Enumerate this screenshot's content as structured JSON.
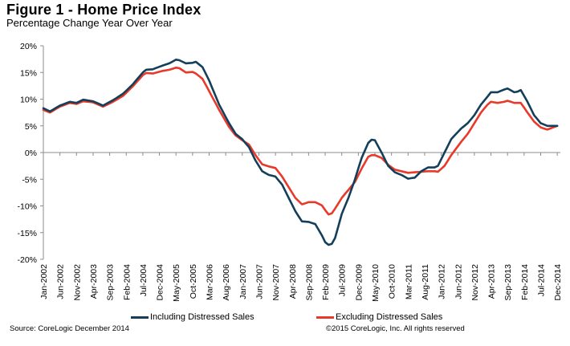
{
  "header": {
    "title": "Figure 1 - Home Price Index",
    "subtitle": "Percentage Change Year Over Year"
  },
  "legend": {
    "items": [
      {
        "label": "Including Distressed Sales",
        "color": "#143f5a"
      },
      {
        "label": "Excluding Distressed Sales",
        "color": "#e8392a"
      }
    ]
  },
  "footer": {
    "source": "Source: CoreLogic December 2014",
    "copyright": "©2015 CoreLogic, Inc. All rights reserved"
  },
  "chart_data": {
    "type": "line",
    "title": "Figure 1 - Home Price Index",
    "subtitle": "Percentage Change Year Over Year",
    "xlabel": "",
    "ylabel": "",
    "ylim": [
      -20,
      20
    ],
    "yticks": [
      20,
      15,
      10,
      5,
      0,
      -5,
      -10,
      -15,
      -20
    ],
    "ytick_labels": [
      "20%",
      "15%",
      "10%",
      "5%",
      "0%",
      "-5%",
      "-10%",
      "-15%",
      "-20%"
    ],
    "x_start": "Jan-2002",
    "x_end": "Dec-2014",
    "x_frequency": "monthly",
    "n_months": 156,
    "xtick_step_months": 5,
    "xtick_labels": [
      "Jan-2002",
      "Jun-2002",
      "Nov-2002",
      "Apr-2003",
      "Sep-2003",
      "Feb-2004",
      "Jul-2004",
      "Dec-2004",
      "May-2005",
      "Oct-2005",
      "Mar-2006",
      "Aug-2006",
      "Jan-2007",
      "Jun-2007",
      "Nov-2007",
      "Apr-2008",
      "Sep-2008",
      "Feb-2009",
      "Jul-2009",
      "Dec-2009",
      "May-2010",
      "Oct-2010",
      "Mar-2011",
      "Aug-2011",
      "Jan-2012",
      "Jun-2012",
      "Nov-2012",
      "Apr-2013",
      "Sep-2013",
      "Feb-2014",
      "Jul-2014",
      "Dec-2014"
    ],
    "grid": false,
    "legend_position": "bottom",
    "series": [
      {
        "name": "Including Distressed Sales",
        "color": "#143f5a",
        "keypoints": [
          [
            0,
            8.3
          ],
          [
            2,
            7.7
          ],
          [
            5,
            8.8
          ],
          [
            8,
            9.5
          ],
          [
            10,
            9.3
          ],
          [
            12,
            9.9
          ],
          [
            15,
            9.6
          ],
          [
            18,
            8.8
          ],
          [
            21,
            9.8
          ],
          [
            24,
            11.0
          ],
          [
            27,
            12.8
          ],
          [
            30,
            15.0
          ],
          [
            31,
            15.5
          ],
          [
            33,
            15.6
          ],
          [
            36,
            16.3
          ],
          [
            38,
            16.7
          ],
          [
            40,
            17.4
          ],
          [
            41,
            17.3
          ],
          [
            43,
            16.7
          ],
          [
            45,
            16.8
          ],
          [
            46,
            17.0
          ],
          [
            48,
            16.0
          ],
          [
            50,
            13.5
          ],
          [
            53,
            9.0
          ],
          [
            56,
            5.5
          ],
          [
            58,
            3.5
          ],
          [
            60,
            2.5
          ],
          [
            62,
            1.0
          ],
          [
            64,
            -1.5
          ],
          [
            66,
            -3.5
          ],
          [
            68,
            -4.2
          ],
          [
            70,
            -4.5
          ],
          [
            72,
            -6.0
          ],
          [
            74,
            -8.5
          ],
          [
            76,
            -11.0
          ],
          [
            78,
            -12.9
          ],
          [
            80,
            -13.0
          ],
          [
            82,
            -13.4
          ],
          [
            84,
            -15.5
          ],
          [
            85,
            -16.8
          ],
          [
            86,
            -17.3
          ],
          [
            87,
            -17.1
          ],
          [
            88,
            -16.0
          ],
          [
            90,
            -11.5
          ],
          [
            92,
            -8.5
          ],
          [
            94,
            -5.0
          ],
          [
            96,
            -1.0
          ],
          [
            98,
            1.8
          ],
          [
            99,
            2.4
          ],
          [
            100,
            2.3
          ],
          [
            102,
            0.0
          ],
          [
            104,
            -2.5
          ],
          [
            106,
            -3.7
          ],
          [
            108,
            -4.2
          ],
          [
            110,
            -4.9
          ],
          [
            112,
            -4.7
          ],
          [
            114,
            -3.5
          ],
          [
            116,
            -2.8
          ],
          [
            118,
            -2.8
          ],
          [
            119,
            -2.5
          ],
          [
            121,
            0.0
          ],
          [
            123,
            2.5
          ],
          [
            126,
            4.5
          ],
          [
            128,
            5.5
          ],
          [
            130,
            7.0
          ],
          [
            132,
            9.0
          ],
          [
            134,
            10.5
          ],
          [
            135,
            11.3
          ],
          [
            137,
            11.3
          ],
          [
            139,
            11.8
          ],
          [
            140,
            12.0
          ],
          [
            142,
            11.3
          ],
          [
            143,
            11.4
          ],
          [
            144,
            11.7
          ],
          [
            146,
            9.5
          ],
          [
            148,
            7.0
          ],
          [
            150,
            5.5
          ],
          [
            152,
            5.0
          ],
          [
            155,
            5.0
          ]
        ]
      },
      {
        "name": "Excluding Distressed Sales",
        "color": "#e8392a",
        "keypoints": [
          [
            0,
            8.0
          ],
          [
            2,
            7.5
          ],
          [
            5,
            8.6
          ],
          [
            8,
            9.3
          ],
          [
            10,
            9.1
          ],
          [
            12,
            9.6
          ],
          [
            15,
            9.4
          ],
          [
            18,
            8.6
          ],
          [
            21,
            9.5
          ],
          [
            24,
            10.6
          ],
          [
            27,
            12.4
          ],
          [
            30,
            14.5
          ],
          [
            31,
            14.9
          ],
          [
            33,
            14.8
          ],
          [
            36,
            15.3
          ],
          [
            38,
            15.5
          ],
          [
            40,
            15.9
          ],
          [
            41,
            15.8
          ],
          [
            43,
            15.0
          ],
          [
            45,
            15.1
          ],
          [
            46,
            14.8
          ],
          [
            48,
            13.8
          ],
          [
            50,
            11.5
          ],
          [
            53,
            8.0
          ],
          [
            56,
            4.8
          ],
          [
            58,
            3.2
          ],
          [
            60,
            2.3
          ],
          [
            62,
            1.5
          ],
          [
            64,
            -0.5
          ],
          [
            66,
            -2.2
          ],
          [
            68,
            -2.6
          ],
          [
            70,
            -2.9
          ],
          [
            72,
            -4.5
          ],
          [
            74,
            -6.5
          ],
          [
            76,
            -8.5
          ],
          [
            78,
            -9.7
          ],
          [
            80,
            -9.3
          ],
          [
            82,
            -9.3
          ],
          [
            84,
            -9.9
          ],
          [
            85,
            -10.8
          ],
          [
            86,
            -11.6
          ],
          [
            87,
            -11.4
          ],
          [
            88,
            -10.5
          ],
          [
            90,
            -8.5
          ],
          [
            92,
            -7.0
          ],
          [
            94,
            -5.5
          ],
          [
            96,
            -3.0
          ],
          [
            98,
            -0.8
          ],
          [
            99,
            -0.5
          ],
          [
            100,
            -0.5
          ],
          [
            102,
            -1.0
          ],
          [
            104,
            -2.3
          ],
          [
            106,
            -3.2
          ],
          [
            108,
            -3.5
          ],
          [
            110,
            -3.8
          ],
          [
            112,
            -3.7
          ],
          [
            114,
            -3.6
          ],
          [
            116,
            -3.5
          ],
          [
            118,
            -3.5
          ],
          [
            119,
            -3.6
          ],
          [
            121,
            -2.5
          ],
          [
            123,
            -0.5
          ],
          [
            126,
            2.0
          ],
          [
            128,
            3.5
          ],
          [
            130,
            5.5
          ],
          [
            132,
            7.5
          ],
          [
            134,
            9.0
          ],
          [
            135,
            9.5
          ],
          [
            137,
            9.3
          ],
          [
            139,
            9.5
          ],
          [
            140,
            9.7
          ],
          [
            142,
            9.3
          ],
          [
            143,
            9.3
          ],
          [
            144,
            9.3
          ],
          [
            146,
            7.5
          ],
          [
            148,
            5.8
          ],
          [
            150,
            4.7
          ],
          [
            152,
            4.3
          ],
          [
            155,
            5.0
          ]
        ]
      }
    ]
  }
}
